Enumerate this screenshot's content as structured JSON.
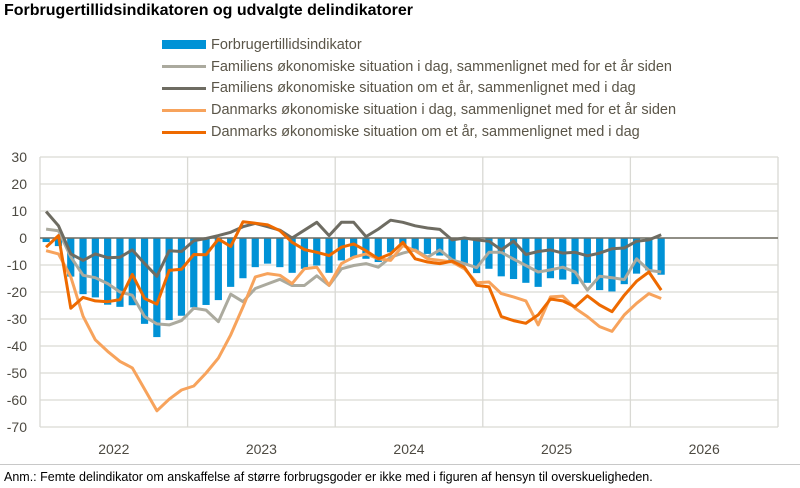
{
  "chart_data": {
    "type": "bar+line",
    "title": "Forbrugertillidsindikatoren og udvalgte delindikatorer",
    "xlabel": "",
    "ylabel": "",
    "ylim": [
      -70,
      30
    ],
    "yticks": [
      30,
      20,
      10,
      0,
      -10,
      -20,
      -30,
      -40,
      -50,
      -60,
      -70
    ],
    "x_tick_labels": [
      "2022",
      "2023",
      "2024",
      "2025",
      "2026"
    ],
    "x_range": [
      "2022-01",
      "2026-12"
    ],
    "x_start": "2022-01",
    "frequency": "monthly",
    "grid": true,
    "legend_position": "top",
    "series": [
      {
        "name": "Forbrugertillidsindikator",
        "kind": "bar",
        "color": "#0092D6",
        "values": [
          -1.5,
          -3,
          -14.3,
          -20.8,
          -22,
          -24.7,
          -25.5,
          -24.9,
          -31.8,
          -36.7,
          -30.4,
          -28.8,
          -25.7,
          -24.8,
          -23,
          -18.1,
          -14.9,
          -10.8,
          -9.5,
          -10.8,
          -12.9,
          -11.4,
          -10.2,
          -12.9,
          -8.3,
          -7.1,
          -7.7,
          -8.9,
          -5.3,
          -3.4,
          -4.7,
          -5.9,
          -6.5,
          -8.3,
          -10.2,
          -13,
          -11.4,
          -14.2,
          -15.2,
          -16.6,
          -18.1,
          -14.9,
          -15.4,
          -17.1,
          -16.6,
          -19.3,
          -19.8,
          -17.1,
          -13.2,
          -12,
          -13.6
        ]
      },
      {
        "name": "Familiens økonomiske situation i dag, sammenlignet med for et år siden",
        "kind": "line",
        "color": "#ABAA9E",
        "values": [
          3.3,
          2.7,
          -7,
          -13.8,
          -14.7,
          -16.9,
          -20,
          -21.2,
          -29.1,
          -31.8,
          -32.2,
          -30.6,
          -26,
          -26.7,
          -31,
          -20.8,
          -23.6,
          -18.7,
          -17,
          -15.3,
          -17.6,
          -17.6,
          -14,
          -17.6,
          -11.4,
          -10.2,
          -9.5,
          -10.8,
          -7.1,
          -5.6,
          -4.4,
          -7.1,
          -4.4,
          -8.1,
          -9.5,
          -11,
          -5.3,
          -5.3,
          -7.8,
          -10.2,
          -12.6,
          -11.8,
          -10.8,
          -12.6,
          -19.3,
          -14.2,
          -14.7,
          -15.4,
          -7.7,
          -12,
          -12.6
        ]
      },
      {
        "name": "Familiens økonomiske situation om et år, sammenlignet med i dag",
        "kind": "line",
        "color": "#6E6C62",
        "values": [
          9.8,
          4.5,
          -5.9,
          -8.3,
          -5.9,
          -7.3,
          -7.1,
          -4.4,
          -9.5,
          -14.2,
          -4.7,
          -5,
          -1,
          -0.2,
          0.9,
          2.1,
          4.2,
          5.4,
          4.2,
          2.9,
          0,
          2.9,
          5.8,
          0.9,
          5.8,
          5.8,
          0.5,
          3.3,
          6.6,
          5.8,
          4.5,
          3.7,
          3.2,
          -0.7,
          0,
          -0.7,
          -1.2,
          -4.4,
          -1.2,
          -6.1,
          -5,
          -4.4,
          -5.6,
          -5.3,
          -6.6,
          -5.6,
          -4,
          -3.7,
          -1.2,
          -0.7,
          1.2
        ]
      },
      {
        "name": "Danmarks økonomiske situation i dag, sammenlignet med for et år siden",
        "kind": "line",
        "color": "#F7A35C",
        "values": [
          -4.7,
          -5.9,
          -14.4,
          -29,
          -37.7,
          -42,
          -45.7,
          -48.1,
          -56,
          -64,
          -59.7,
          -56.3,
          -54.8,
          -50,
          -44.5,
          -35.9,
          -25.5,
          -14.4,
          -13.2,
          -13.8,
          -16.9,
          -11.4,
          -10.8,
          -17.5,
          -9.5,
          -7.1,
          -5.9,
          -7.7,
          -8.3,
          -2.8,
          -4.7,
          -7.7,
          -8.3,
          -8.9,
          -11.4,
          -16.6,
          -16.3,
          -20.6,
          -21.8,
          -23.3,
          -32.2,
          -21.8,
          -21.5,
          -26,
          -29.1,
          -32.8,
          -34.6,
          -28.5,
          -24.2,
          -20.6,
          -22.4
        ]
      },
      {
        "name": "Danmarks økonomiske situation om et år, sammenlignet med i dag",
        "kind": "line",
        "color": "#EE6A00",
        "values": [
          -3.4,
          0.9,
          -26,
          -22,
          -23.3,
          -23.6,
          -22.8,
          -13.5,
          -22.4,
          -24.5,
          -12,
          -11.6,
          -6.1,
          -6.2,
          -0.4,
          -3.1,
          6,
          5.5,
          4.9,
          2.7,
          -1.6,
          -4.3,
          -5.3,
          -6.5,
          -3.4,
          -2.2,
          -4.7,
          -7.7,
          -5.9,
          -1.6,
          -7.7,
          -8.9,
          -9.5,
          -8.6,
          -10.8,
          -17.5,
          -18.1,
          -29.1,
          -30.6,
          -31.6,
          -28.5,
          -22.6,
          -23.3,
          -25.5,
          -21.4,
          -24.8,
          -27.3,
          -21.2,
          -16,
          -12.6,
          -19.3
        ]
      }
    ]
  },
  "note": "Anm.: Femte delindikator om anskaffelse af større forbrugsgoder er ikke med i figuren af hensyn til overskueligheden."
}
